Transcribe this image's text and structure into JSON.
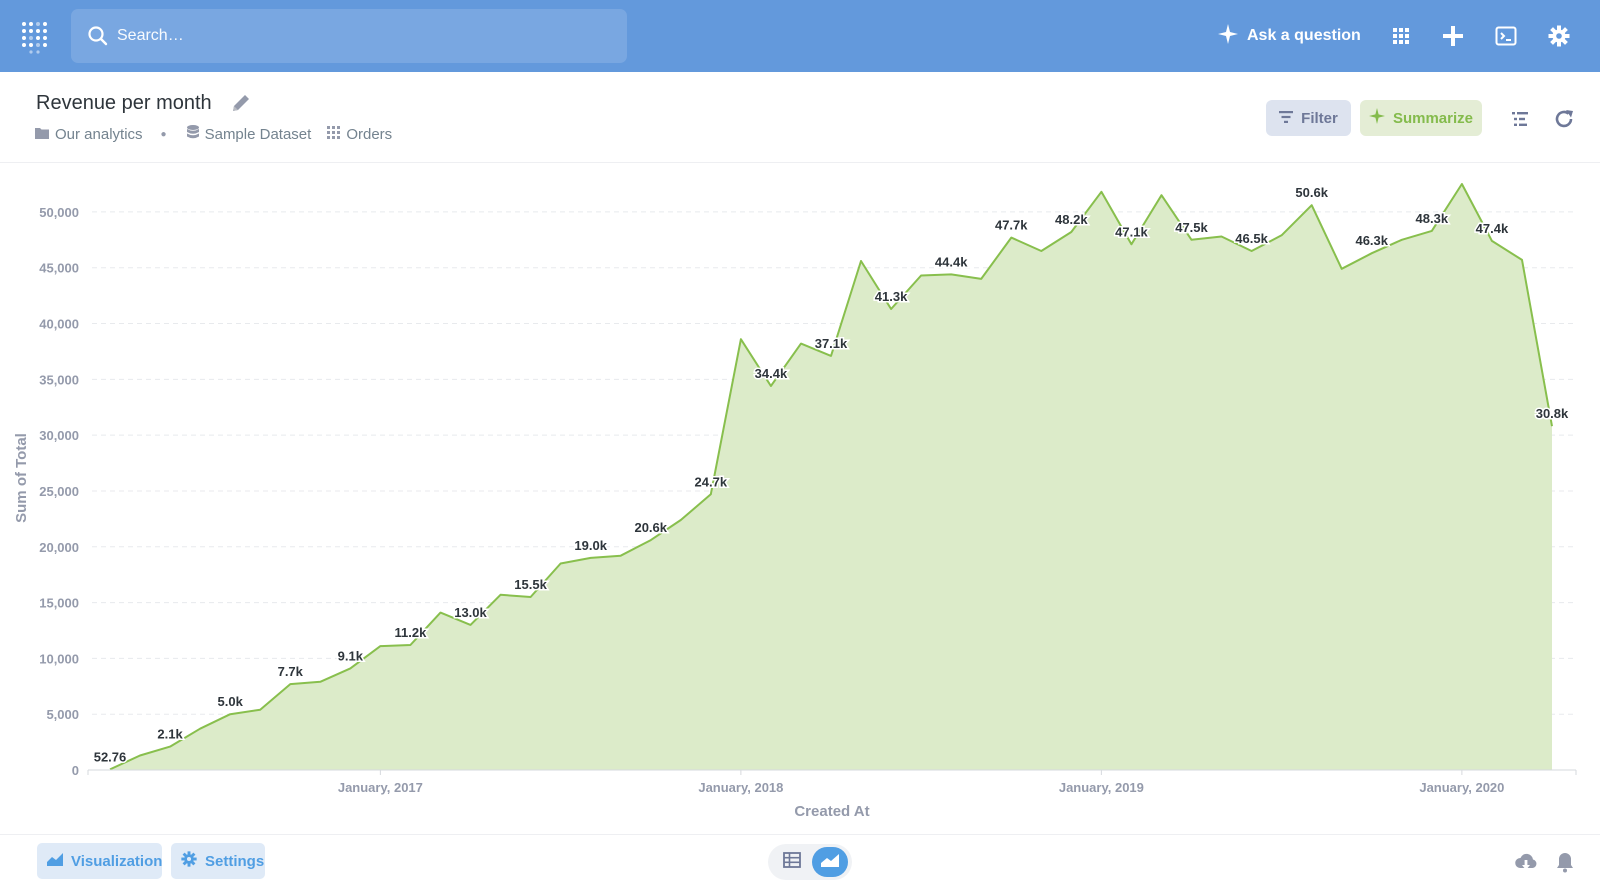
{
  "topbar": {
    "search_placeholder": "Search…",
    "ask_label": "Ask a question",
    "icons": [
      "metabase-logo-icon",
      "search-icon",
      "sparkle-icon",
      "grid-apps-icon",
      "plus-icon",
      "sql-editor-icon",
      "gear-icon"
    ]
  },
  "question": {
    "title": "Revenue per month",
    "breadcrumbs": [
      "Our analytics",
      "Sample Dataset",
      "Orders"
    ],
    "filter_label": "Filter",
    "summarize_label": "Summarize"
  },
  "footer": {
    "visualization_label": "Visualization",
    "settings_label": "Settings"
  },
  "colors": {
    "brand": "#509ee3",
    "topbar": "#6399dc",
    "series_line": "#88bf4d",
    "series_fill": "#dcebc9",
    "summarize": "#84bb4c"
  },
  "chart_data": {
    "type": "area",
    "xlabel": "Created At",
    "ylabel": "Sum of Total",
    "ylim": [
      0,
      52500
    ],
    "y_ticks": [
      0,
      5000,
      10000,
      15000,
      20000,
      25000,
      30000,
      35000,
      40000,
      45000,
      50000
    ],
    "y_tick_labels": [
      "0",
      "5,000",
      "10,000",
      "15,000",
      "20,000",
      "25,000",
      "30,000",
      "35,000",
      "40,000",
      "45,000",
      "50,000"
    ],
    "x_ticks": [
      "January, 2017",
      "January, 2018",
      "January, 2019",
      "January, 2020"
    ],
    "x_tick_values": [
      "2017-01",
      "2018-01",
      "2019-01",
      "2020-01"
    ],
    "grid": "horizontal dashed",
    "x": [
      "2016-04",
      "2016-05",
      "2016-06",
      "2016-07",
      "2016-08",
      "2016-09",
      "2016-10",
      "2016-11",
      "2016-12",
      "2017-01",
      "2017-02",
      "2017-03",
      "2017-04",
      "2017-05",
      "2017-06",
      "2017-07",
      "2017-08",
      "2017-09",
      "2017-10",
      "2017-11",
      "2017-12",
      "2018-01",
      "2018-02",
      "2018-03",
      "2018-04",
      "2018-05",
      "2018-06",
      "2018-07",
      "2018-08",
      "2018-09",
      "2018-10",
      "2018-11",
      "2018-12",
      "2019-01",
      "2019-02",
      "2019-03",
      "2019-04",
      "2019-05",
      "2019-06",
      "2019-07",
      "2019-08",
      "2019-09",
      "2019-10",
      "2019-11",
      "2019-12",
      "2020-01",
      "2020-02",
      "2020-03",
      "2020-04"
    ],
    "values": [
      52.76,
      1300,
      2100,
      3700,
      5000,
      5400,
      7700,
      7900,
      9100,
      11100,
      11200,
      14100,
      13000,
      15700,
      15500,
      18500,
      19000,
      19200,
      20600,
      22400,
      24700,
      38600,
      34400,
      38200,
      37100,
      45600,
      41300,
      44300,
      44400,
      44000,
      47700,
      46500,
      48200,
      51800,
      47100,
      51500,
      47500,
      47800,
      46500,
      47900,
      50600,
      44900,
      46300,
      47500,
      48300,
      52500,
      47400,
      45700,
      30800
    ],
    "data_labels": [
      {
        "i": 0,
        "text": "52.76"
      },
      {
        "i": 2,
        "text": "2.1k"
      },
      {
        "i": 4,
        "text": "5.0k"
      },
      {
        "i": 6,
        "text": "7.7k"
      },
      {
        "i": 8,
        "text": "9.1k"
      },
      {
        "i": 10,
        "text": "11.2k"
      },
      {
        "i": 12,
        "text": "13.0k"
      },
      {
        "i": 14,
        "text": "15.5k"
      },
      {
        "i": 16,
        "text": "19.0k"
      },
      {
        "i": 18,
        "text": "20.6k"
      },
      {
        "i": 20,
        "text": "24.7k"
      },
      {
        "i": 22,
        "text": "34.4k"
      },
      {
        "i": 24,
        "text": "37.1k"
      },
      {
        "i": 26,
        "text": "41.3k"
      },
      {
        "i": 28,
        "text": "44.4k"
      },
      {
        "i": 30,
        "text": "47.7k"
      },
      {
        "i": 32,
        "text": "48.2k"
      },
      {
        "i": 34,
        "text": "47.1k"
      },
      {
        "i": 36,
        "text": "47.5k"
      },
      {
        "i": 38,
        "text": "46.5k"
      },
      {
        "i": 40,
        "text": "50.6k"
      },
      {
        "i": 42,
        "text": "46.3k"
      },
      {
        "i": 44,
        "text": "48.3k"
      },
      {
        "i": 46,
        "text": "47.4k"
      },
      {
        "i": 48,
        "text": "30.8k"
      }
    ]
  }
}
